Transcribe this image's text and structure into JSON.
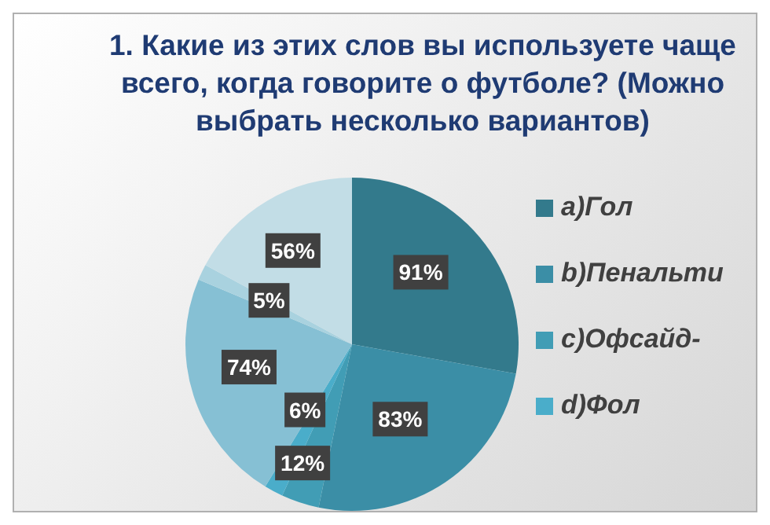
{
  "chart_data": {
    "type": "pie",
    "title": "1. Какие из этих слов вы используете чаще всего, когда говорите о футболе? (Можно выбрать несколько вариантов)",
    "categories": [
      "a)Гол",
      "b)Пенальти",
      "c)Офсайд-",
      "d)Фол",
      null,
      null,
      null
    ],
    "values": [
      91,
      83,
      12,
      6,
      74,
      5,
      56
    ],
    "value_labels": [
      "91%",
      "83%",
      "12%",
      "6%",
      "74%",
      "5%",
      "56%"
    ],
    "colors": [
      "#337a8c",
      "#3b8ea6",
      "#419db5",
      "#4aadca",
      "#86c0d4",
      "#a9d2df",
      "#c2dde6"
    ],
    "legend": "right"
  }
}
